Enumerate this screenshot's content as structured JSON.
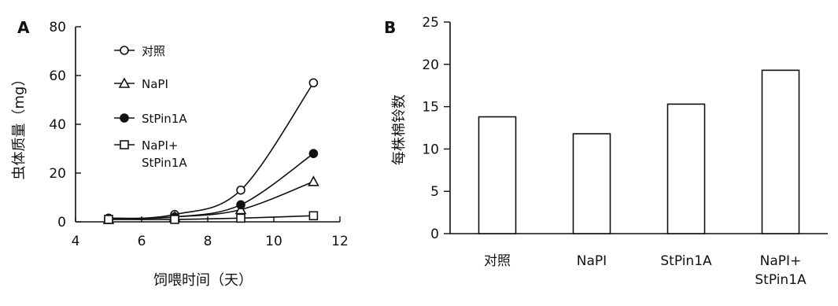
{
  "chart_data": [
    {
      "panel": "A",
      "type": "line",
      "xlabel": "饲喂时间（天）",
      "ylabel": "虫体质量（mg）",
      "xlim": [
        4,
        12
      ],
      "ylim": [
        0,
        80
      ],
      "xticks": [
        4,
        6,
        8,
        10,
        12
      ],
      "yticks": [
        0,
        20,
        40,
        60,
        80
      ],
      "legend_position": "upper-left",
      "series": [
        {
          "name": "对照",
          "marker": "open-circle",
          "x": [
            5,
            7,
            9,
            11.2
          ],
          "y": [
            1,
            3,
            13,
            57
          ]
        },
        {
          "name": "NaPI",
          "marker": "open-triangle",
          "x": [
            5,
            7,
            9,
            11.2
          ],
          "y": [
            1,
            2,
            5,
            16.5
          ]
        },
        {
          "name": "StPin1A",
          "marker": "filled-circle",
          "x": [
            5,
            7,
            9,
            11.2
          ],
          "y": [
            1.5,
            2,
            7,
            28
          ]
        },
        {
          "name": "NaPI+\nStPin1A",
          "marker": "open-square",
          "x": [
            5,
            7,
            9,
            11.2
          ],
          "y": [
            1,
            1,
            1.5,
            2.5
          ]
        }
      ]
    },
    {
      "panel": "B",
      "type": "bar",
      "ylabel": "每株棉铃数",
      "ylim": [
        0,
        25
      ],
      "yticks": [
        0,
        5,
        10,
        15,
        20,
        25
      ],
      "categories": [
        "对照",
        "NaPI",
        "StPin1A",
        "NaPI+\nStPin1A"
      ],
      "values": [
        13.8,
        11.8,
        15.3,
        19.3
      ]
    }
  ]
}
